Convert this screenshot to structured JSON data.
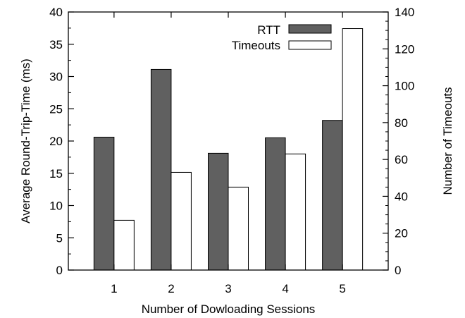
{
  "chart_data": {
    "type": "bar",
    "title": "",
    "xlabel": "Number of Dowloading Sessions",
    "ylabel": "Average Round-Trip-Time (ms)",
    "y2label": "Number of Timeouts",
    "categories": [
      "1",
      "2",
      "3",
      "4",
      "5"
    ],
    "ylim": [
      0,
      40
    ],
    "y2lim": [
      0,
      140
    ],
    "yticks": [
      "0",
      "5",
      "10",
      "15",
      "20",
      "25",
      "30",
      "35",
      "40"
    ],
    "y2ticks": [
      "0",
      "20",
      "40",
      "60",
      "80",
      "100",
      "120",
      "140"
    ],
    "grid": false,
    "legend_position": "top-right",
    "series": [
      {
        "name": "RTT",
        "axis": "left",
        "color": "#606060",
        "values": [
          20.6,
          31.1,
          18.1,
          20.5,
          23.2
        ]
      },
      {
        "name": "Timeouts",
        "axis": "right",
        "color": "#ffffff",
        "values": [
          27,
          53,
          45,
          63,
          131
        ]
      }
    ]
  }
}
